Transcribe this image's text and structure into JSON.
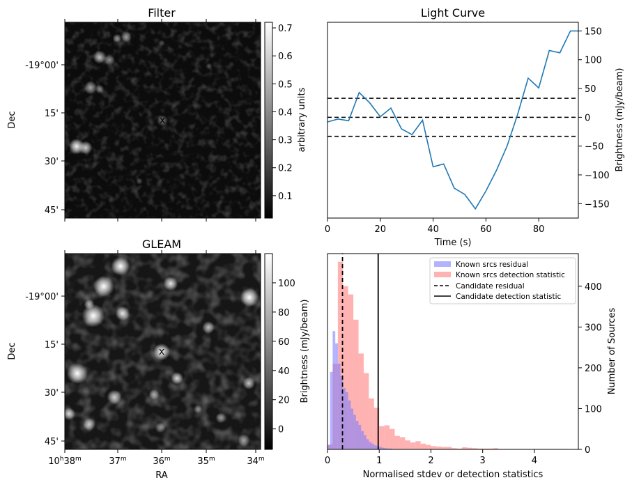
{
  "panels": {
    "filter": {
      "title": "Filter",
      "dec_ticks": [
        "-19°00'",
        "15'",
        "30'",
        "45'"
      ],
      "ylabel": "Dec",
      "colorbar": {
        "label": "arbitrary units",
        "ticks": [
          "0.1",
          "0.2",
          "0.3",
          "0.4",
          "0.5",
          "0.6",
          "0.7"
        ],
        "range": [
          0.02,
          0.72
        ],
        "colormap": "gray"
      }
    },
    "gleam": {
      "title": "GLEAM",
      "dec_ticks": [
        "-19°00'",
        "15'",
        "30'",
        "45'"
      ],
      "ylabel": "Dec",
      "xlabel": "RA",
      "ra_ticks": [
        {
          "main": "10",
          "h": "h",
          "m": "38",
          "u": "m"
        },
        {
          "main": "37",
          "u": "m"
        },
        {
          "main": "36",
          "u": "m"
        },
        {
          "main": "35",
          "u": "m"
        },
        {
          "main": "34",
          "u": "m"
        }
      ],
      "colorbar": {
        "label": "Brightness (mJy/beam)",
        "ticks": [
          "0",
          "20",
          "40",
          "60",
          "80",
          "100"
        ],
        "range": [
          -14,
          120
        ],
        "colormap": "gray"
      }
    },
    "candidate_marker": "x",
    "colors": {
      "candidate": "#4b1fd8"
    }
  },
  "chart_data": [
    {
      "type": "line",
      "title": "Light Curve",
      "xlabel": "Time (s)",
      "ylabel": "Brightness (mJy/beam)",
      "xlim": [
        0,
        95
      ],
      "ylim": [
        -175,
        165
      ],
      "xticks": [
        "0",
        "20",
        "40",
        "60",
        "80"
      ],
      "yticks": [
        "-150",
        "-100",
        "-50",
        "0",
        "50",
        "100",
        "150"
      ],
      "series": [
        {
          "color": "#1f77b4",
          "x": [
            0,
            4,
            8,
            12,
            16,
            20,
            24,
            28,
            32,
            36,
            40,
            44,
            48,
            52,
            56,
            60,
            64,
            68,
            72,
            76,
            80,
            84,
            88,
            92,
            96
          ],
          "y": [
            -8,
            -3,
            -6,
            43,
            25,
            1,
            16,
            -20,
            -30,
            -5,
            -86,
            -81,
            -123,
            -134,
            -159,
            -128,
            -92,
            -50,
            5,
            68,
            51,
            116,
            112,
            150,
            150
          ]
        }
      ],
      "hlines": [
        {
          "y": 33,
          "style": "dashed",
          "color": "#000000"
        },
        {
          "y": 0,
          "style": "dashed",
          "color": "#000000"
        },
        {
          "y": -33,
          "style": "dashed",
          "color": "#000000"
        }
      ]
    },
    {
      "type": "bar",
      "xlabel": "Normalised stdev or detection statistics",
      "ylabel": "Number of Sources",
      "xlim": [
        0,
        4.85
      ],
      "ylim": [
        0,
        480
      ],
      "xticks": [
        "0",
        "1",
        "2",
        "3",
        "4"
      ],
      "yticks": [
        "0",
        "100",
        "200",
        "300",
        "400"
      ],
      "bin_width": 0.1,
      "series": [
        {
          "name": "Known srcs residual",
          "color": "#7f7fff",
          "bin_starts": [
            0.0,
            0.05,
            0.1,
            0.15,
            0.2,
            0.25,
            0.3,
            0.35,
            0.4,
            0.45,
            0.5,
            0.55,
            0.6,
            0.65,
            0.7,
            0.75,
            0.8,
            0.85,
            0.9,
            0.95,
            1.0,
            1.05,
            1.1,
            1.15,
            1.2
          ],
          "bin_width": 0.05,
          "values": [
            10,
            190,
            290,
            260,
            210,
            180,
            150,
            140,
            120,
            100,
            85,
            70,
            60,
            45,
            35,
            25,
            18,
            14,
            10,
            8,
            6,
            4,
            3,
            2,
            2
          ]
        },
        {
          "name": "Known srcs detection statistic",
          "color": "#ff7f7f",
          "bin_starts": [
            0.0,
            0.1,
            0.2,
            0.3,
            0.4,
            0.5,
            0.6,
            0.7,
            0.8,
            0.9,
            1.0,
            1.1,
            1.2,
            1.3,
            1.4,
            1.5,
            1.6,
            1.7,
            1.8,
            1.9,
            2.0,
            2.1,
            2.2,
            2.3,
            2.4,
            2.5,
            2.6,
            2.7,
            2.8,
            2.9,
            3.0,
            3.1,
            3.2,
            3.3,
            3.4,
            3.5,
            3.6,
            3.7,
            3.8,
            3.9,
            4.0,
            4.1,
            4.2,
            4.3,
            4.4,
            4.5
          ],
          "values": [
            12,
            210,
            460,
            400,
            380,
            318,
            235,
            187,
            125,
            102,
            57,
            59,
            50,
            33,
            30,
            22,
            17,
            20,
            14,
            11,
            8,
            7,
            6,
            6,
            3,
            2,
            5,
            4,
            3,
            2,
            2,
            2,
            3,
            1,
            1,
            1,
            1,
            1,
            1,
            1,
            1,
            1,
            1,
            1,
            1,
            1
          ]
        }
      ],
      "vlines": [
        {
          "name": "Candidate residual",
          "x": 0.29,
          "style": "dashed",
          "color": "#000000"
        },
        {
          "name": "Candidate detection statistic",
          "x": 0.98,
          "style": "solid",
          "color": "#000000"
        }
      ],
      "legend_position": "top-right"
    }
  ]
}
